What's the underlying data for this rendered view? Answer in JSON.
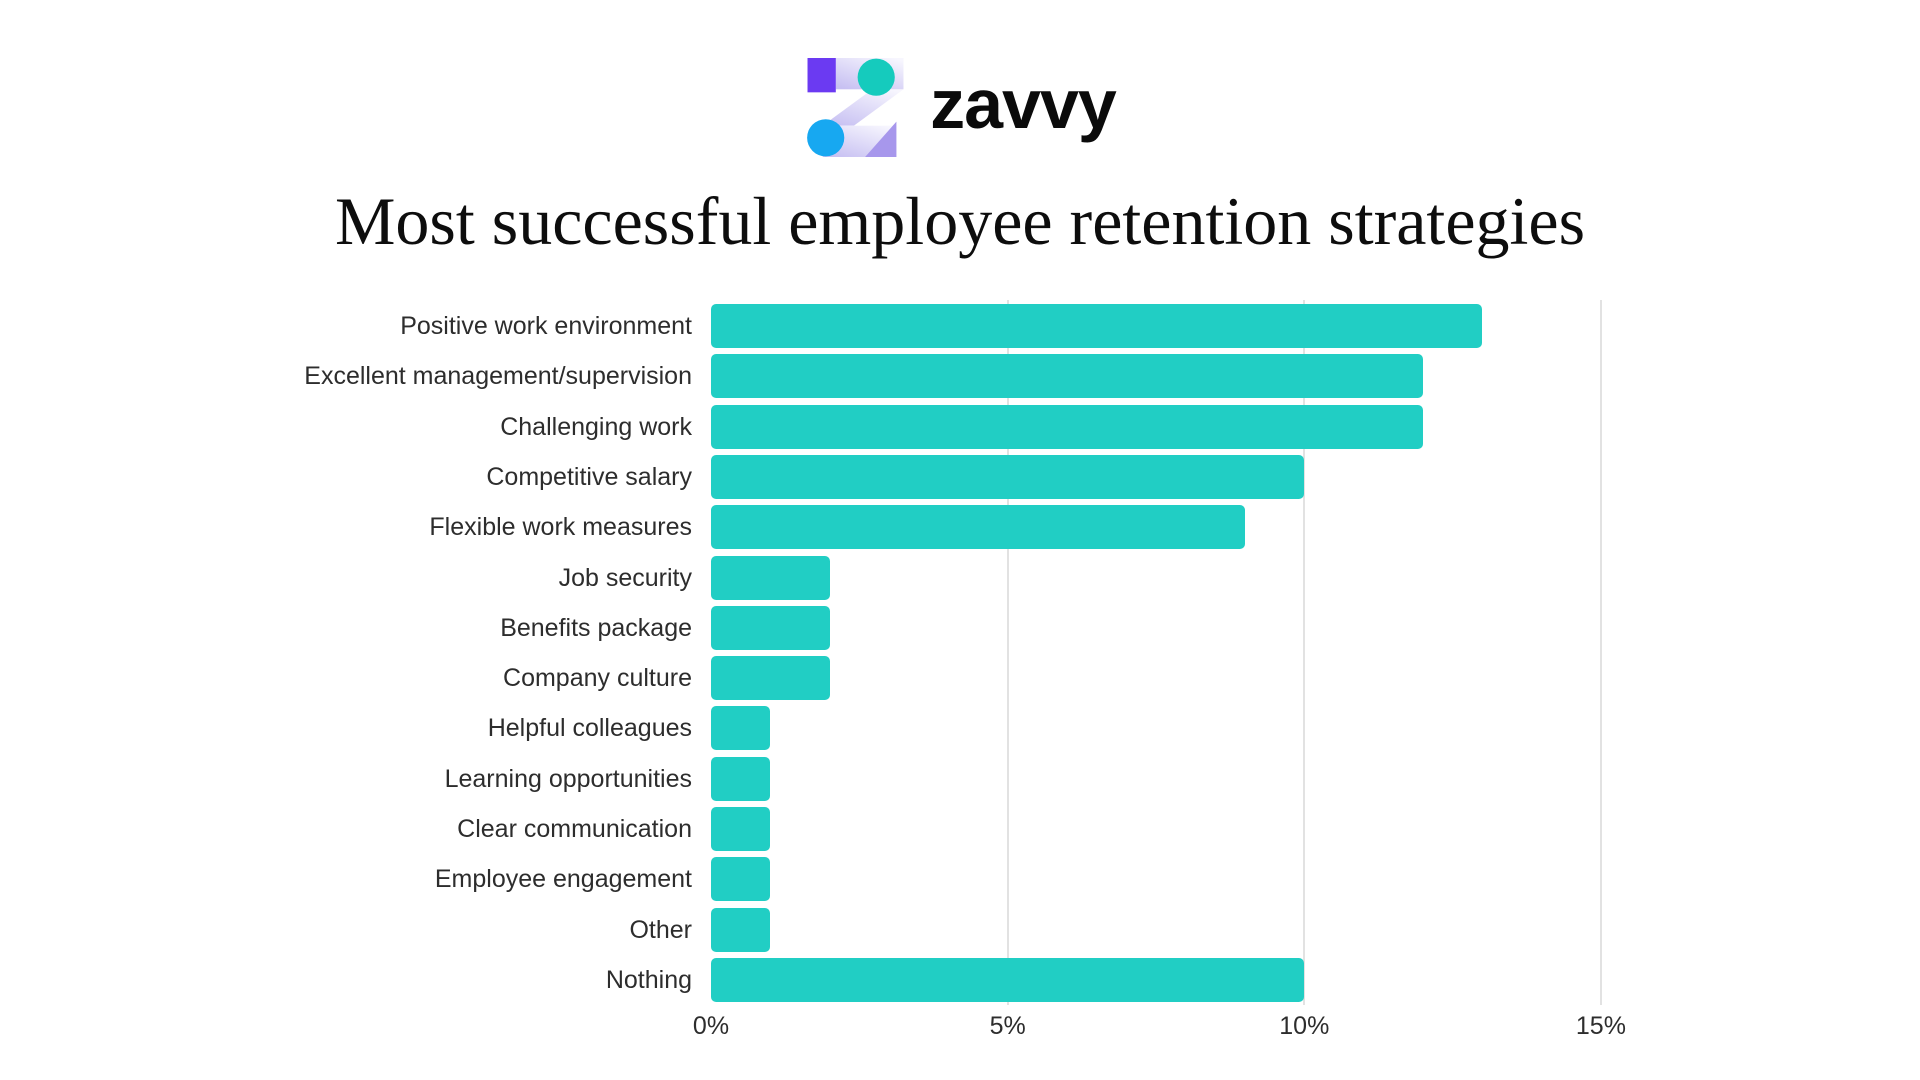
{
  "brand": {
    "wordmark": "zavvy",
    "logo_colors": {
      "square": "#6b3af2",
      "circle_top": "#15cbbd",
      "circle_bottom": "#17a8f1",
      "triangle": "#a797ec",
      "z_gradient_start": "#f7f6fe",
      "z_gradient_end": "#c7c0f2"
    }
  },
  "title": "Most successful employee retention strategies",
  "chart_data": {
    "type": "bar",
    "orientation": "horizontal",
    "title": "Most successful employee retention strategies",
    "categories": [
      "Positive work environment",
      "Excellent management/supervision",
      "Challenging work",
      "Competitive salary",
      "Flexible work measures",
      "Job security",
      "Benefits package",
      "Company culture",
      "Helpful colleagues",
      "Learning opportunities",
      "Clear communication",
      "Employee engagement",
      "Other",
      "Nothing"
    ],
    "values": [
      13,
      12,
      12,
      10,
      9,
      2,
      2,
      2,
      1,
      1,
      1,
      1,
      1,
      10
    ],
    "unit": "%",
    "x_ticks": [
      {
        "value": 0,
        "label": "0%"
      },
      {
        "value": 5,
        "label": "5%"
      },
      {
        "value": 10,
        "label": "10%"
      },
      {
        "value": 15,
        "label": "15%"
      }
    ],
    "xlim": [
      0,
      15.5
    ],
    "xlabel": "",
    "ylabel": "",
    "grid": "vertical-only",
    "legend": "none",
    "bar_color": "#21cec4",
    "gridline_color": "#e2e2e2",
    "label_color": "#2d2d2d",
    "tick_color": "#2d2d2d"
  }
}
